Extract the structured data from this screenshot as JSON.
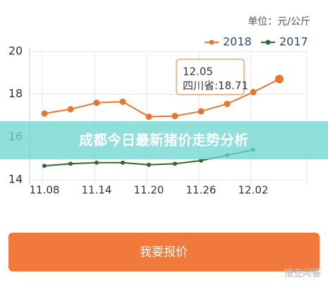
{
  "unit": "单位：元/公斤",
  "chart_data": {
    "type": "line",
    "categories": [
      "11.08",
      null,
      "11.14",
      null,
      "11.20",
      null,
      "11.26",
      null,
      "12.02",
      null
    ],
    "series": [
      {
        "name": "2018",
        "color": "#e8772e",
        "values": [
          17.1,
          17.3,
          17.6,
          17.65,
          16.95,
          16.98,
          17.2,
          17.55,
          18.1,
          18.71
        ]
      },
      {
        "name": "2017",
        "color": "#2e6b2e",
        "values": [
          14.65,
          14.75,
          14.8,
          14.8,
          14.7,
          14.75,
          14.9,
          15.15,
          15.4,
          null
        ]
      }
    ],
    "ylim": [
      14,
      20
    ],
    "yticks": [
      14,
      16,
      18,
      20
    ],
    "grid": true,
    "tooltip": {
      "title": "12.05",
      "label": "四川省:18.71"
    }
  },
  "banner": "成都今日最新猪价走势分析",
  "button": "我要报价",
  "watermark": "悟空问答"
}
